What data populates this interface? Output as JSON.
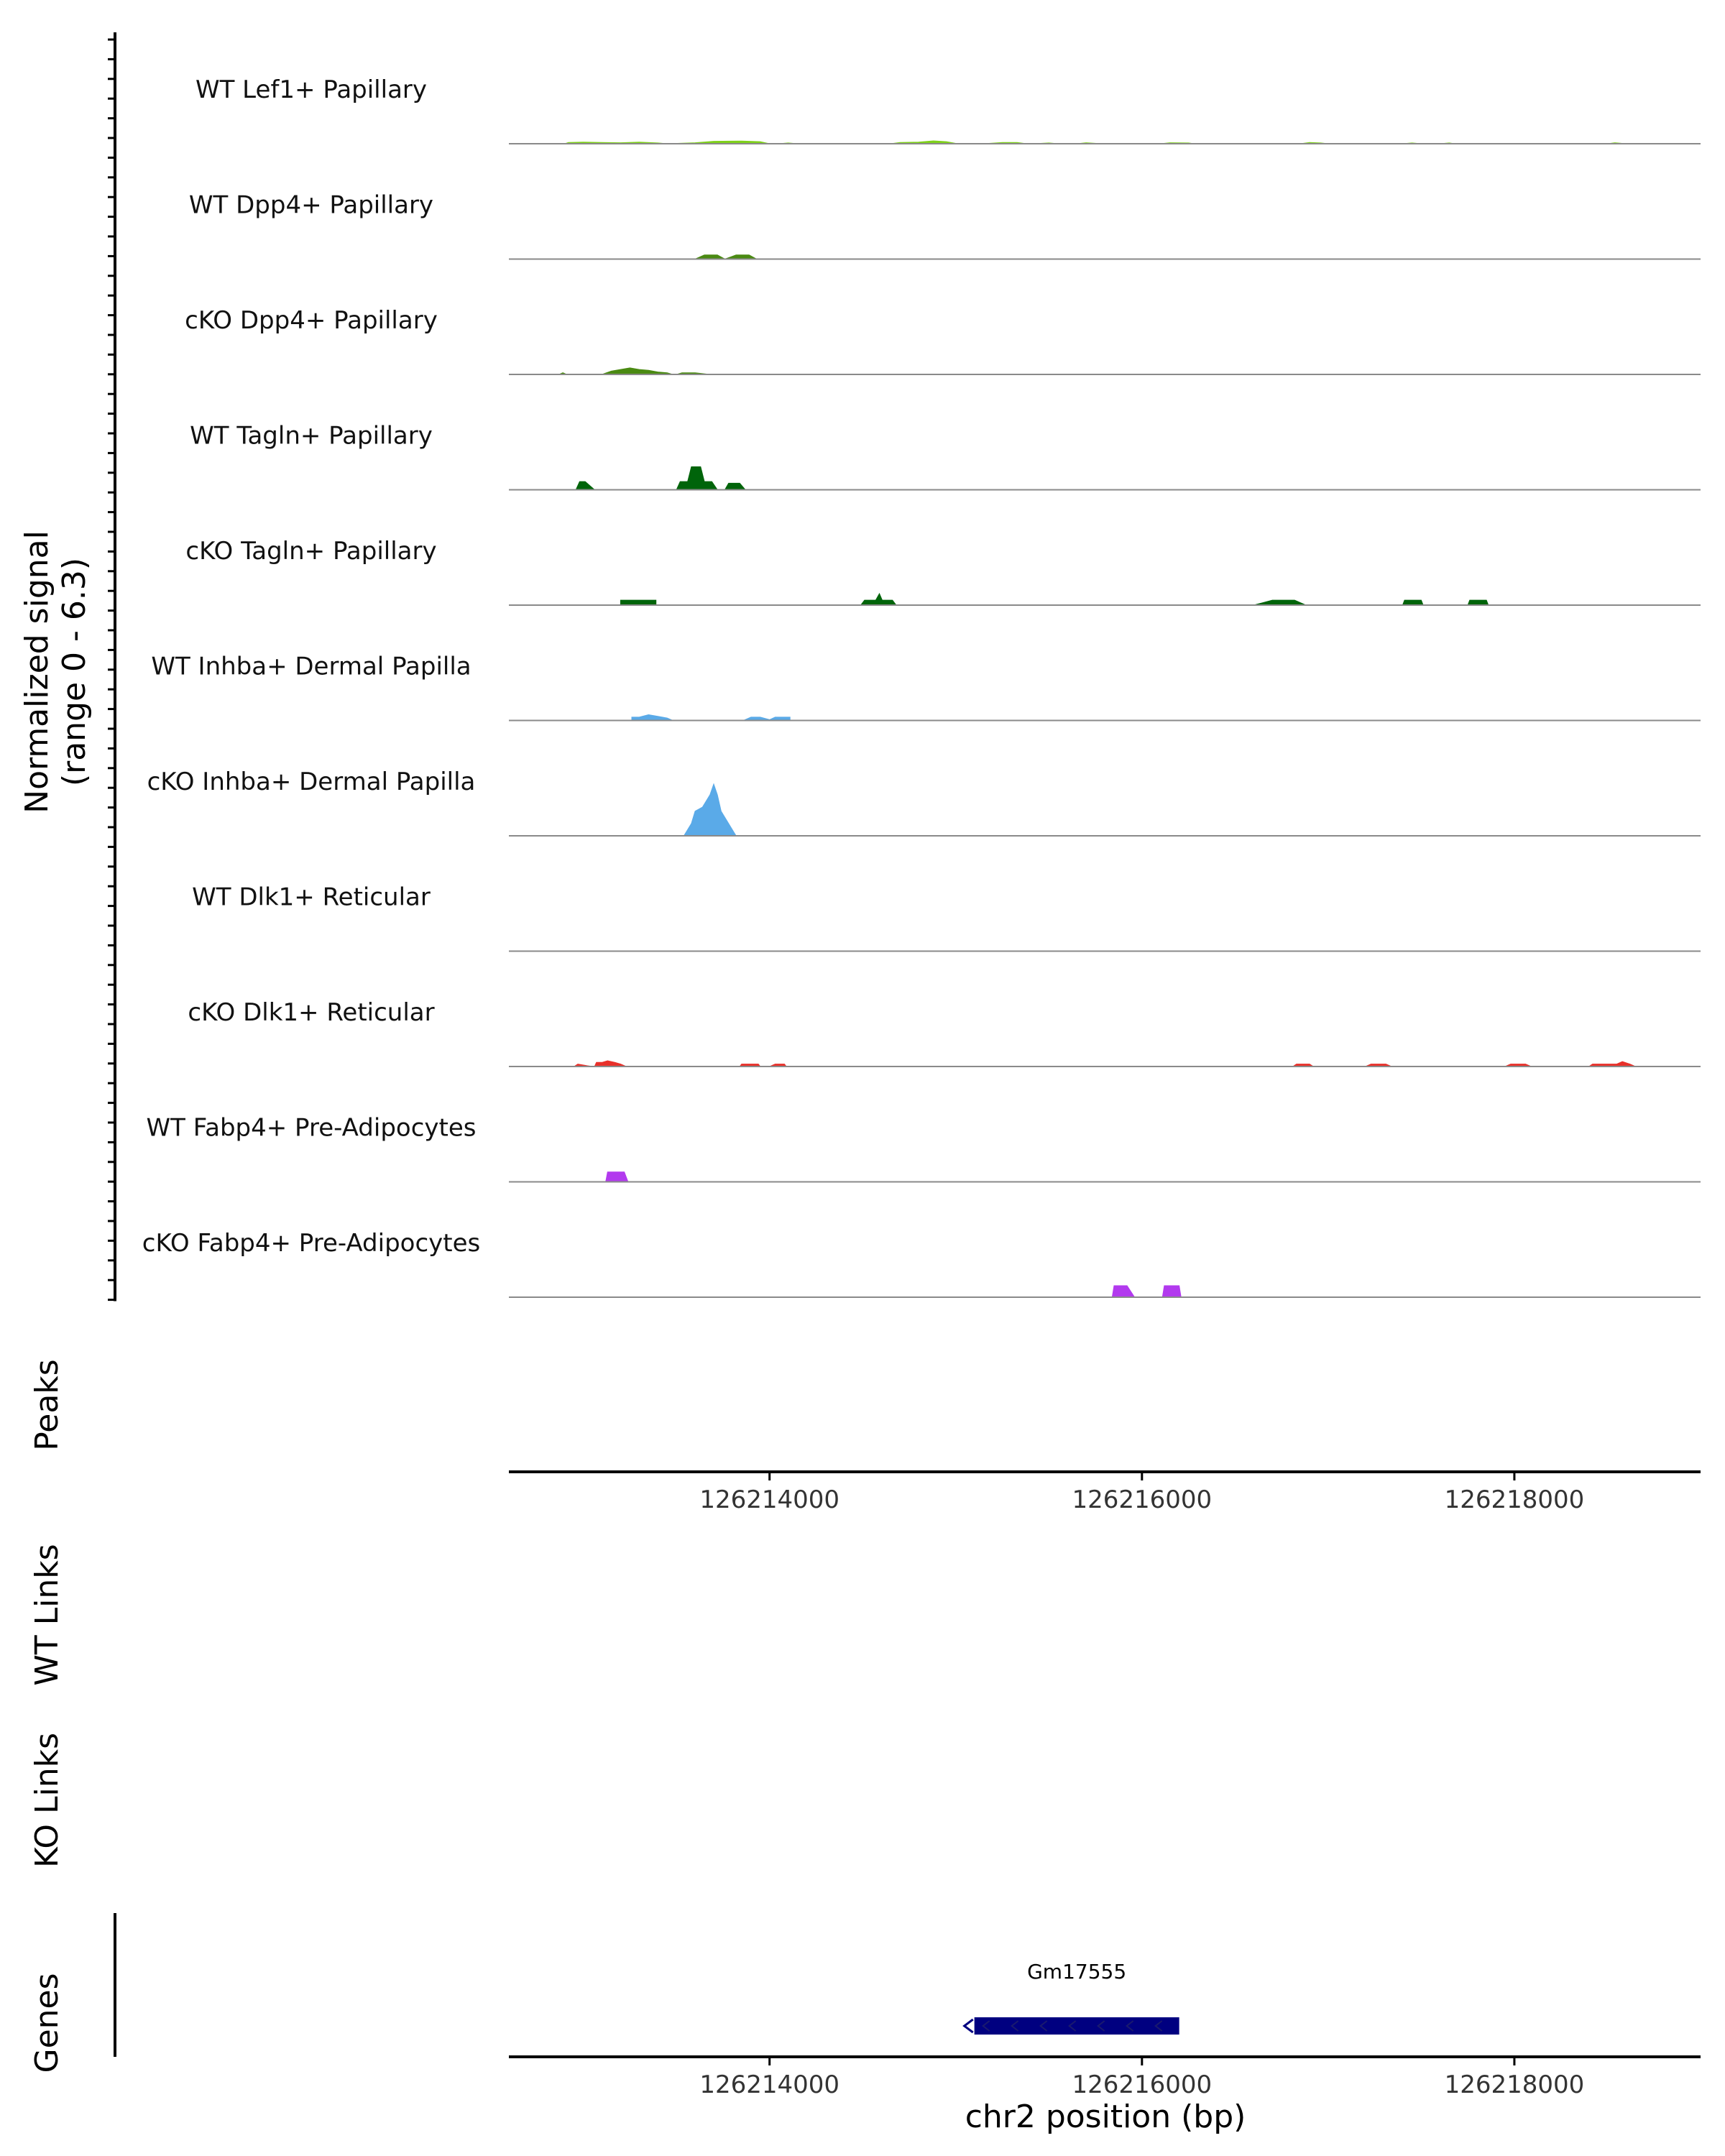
{
  "chart_data": {
    "type": "area",
    "title": "",
    "region": {
      "chromosome": "chr2",
      "start": 126212600,
      "end": 126219000
    },
    "coverage": {
      "ylabel_line1": "Normalized signal",
      "ylabel_line2": "(range 0 - 6.3)",
      "ylim": [
        0,
        6.3
      ],
      "series": [
        {
          "name": "WT Lef1+ Papillary",
          "color": "#7FD11B",
          "segments": [
            [
              [
                126212900,
                0
              ],
              [
                126212920,
                0.15
              ],
              [
                126213000,
                0.2
              ],
              [
                126213100,
                0.15
              ],
              [
                126213200,
                0.12
              ],
              [
                126213300,
                0.2
              ],
              [
                126213400,
                0.1
              ],
              [
                126213450,
                0
              ],
              [
                126213450,
                0
              ],
              [
                126213600,
                0.12
              ],
              [
                126213700,
                0.3
              ],
              [
                126213850,
                0.33
              ],
              [
                126213950,
                0.25
              ],
              [
                126214000,
                0
              ],
              [
                126214050,
                0
              ],
              [
                126214100,
                0.1
              ],
              [
                126214150,
                0
              ]
            ],
            [
              [
                126214650,
                0
              ],
              [
                126214700,
                0.15
              ],
              [
                126214800,
                0.2
              ],
              [
                126214880,
                0.35
              ],
              [
                126214950,
                0.25
              ],
              [
                126215010,
                0
              ]
            ],
            [
              [
                126215150,
                0
              ],
              [
                126215250,
                0.15
              ],
              [
                126215330,
                0.15
              ],
              [
                126215380,
                0
              ]
            ],
            [
              [
                126215420,
                0
              ],
              [
                126215500,
                0.1
              ],
              [
                126215550,
                0
              ]
            ],
            [
              [
                126215650,
                0
              ],
              [
                126215700,
                0.12
              ],
              [
                126215780,
                0
              ]
            ],
            [
              [
                126216100,
                0
              ],
              [
                126216150,
                0.12
              ],
              [
                126216250,
                0.1
              ],
              [
                126216280,
                0
              ]
            ],
            [
              [
                126216850,
                0
              ],
              [
                126216900,
                0.15
              ],
              [
                126216960,
                0.1
              ],
              [
                126217000,
                0
              ]
            ],
            [
              [
                126217400,
                0
              ],
              [
                126217450,
                0.1
              ],
              [
                126217500,
                0
              ]
            ],
            [
              [
                126217600,
                0
              ],
              [
                126217650,
                0.1
              ],
              [
                126217680,
                0
              ]
            ],
            [
              [
                126218500,
                0
              ],
              [
                126218540,
                0.12
              ],
              [
                126218600,
                0
              ]
            ]
          ]
        },
        {
          "name": "WT Dpp4+ Papillary",
          "color": "#4A8A12",
          "segments": [
            [
              [
                126213600,
                0
              ],
              [
                126213650,
                0.5
              ],
              [
                126213720,
                0.5
              ],
              [
                126213760,
                0
              ]
            ],
            [
              [
                126213760,
                0
              ],
              [
                126213820,
                0.5
              ],
              [
                126213890,
                0.5
              ],
              [
                126213930,
                0
              ]
            ]
          ]
        },
        {
          "name": "cKO Dpp4+ Papillary",
          "color": "#4A8A12",
          "segments": [
            [
              [
                126212870,
                0
              ],
              [
                126212890,
                0.2
              ],
              [
                126212910,
                0
              ]
            ],
            [
              [
                126213100,
                0
              ],
              [
                126213150,
                0.4
              ],
              [
                126213200,
                0.6
              ],
              [
                126213250,
                0.8
              ],
              [
                126213300,
                0.6
              ],
              [
                126213350,
                0.5
              ],
              [
                126213400,
                0.3
              ],
              [
                126213450,
                0.2
              ],
              [
                126213480,
                0
              ]
            ],
            [
              [
                126213500,
                0
              ],
              [
                126213530,
                0.2
              ],
              [
                126213600,
                0.2
              ],
              [
                126213680,
                0
              ]
            ]
          ]
        },
        {
          "name": "WT Tagln+ Papillary",
          "color": "#00640A",
          "segments": [
            [
              [
                126212960,
                0
              ],
              [
                126212980,
                1.0
              ],
              [
                126213010,
                1.0
              ],
              [
                126213060,
                0
              ]
            ],
            [
              [
                126213500,
                0
              ],
              [
                126213520,
                1.0
              ],
              [
                126213560,
                1.0
              ],
              [
                126213580,
                2.8
              ],
              [
                126213630,
                2.8
              ],
              [
                126213650,
                1.0
              ],
              [
                126213690,
                1.0
              ],
              [
                126213720,
                0
              ]
            ],
            [
              [
                126213760,
                0
              ],
              [
                126213780,
                0.8
              ],
              [
                126213840,
                0.8
              ],
              [
                126213870,
                0
              ]
            ]
          ]
        },
        {
          "name": "cKO Tagln+ Papillary",
          "color": "#00640A",
          "segments": [
            [
              [
                126213200,
                0
              ],
              [
                126213200,
                0.6
              ],
              [
                126213390,
                0.6
              ],
              [
                126213390,
                0
              ]
            ],
            [
              [
                126214490,
                0
              ],
              [
                126214510,
                0.6
              ],
              [
                126214570,
                0.6
              ],
              [
                126214590,
                1.4
              ],
              [
                126214605,
                0.6
              ],
              [
                126214660,
                0.6
              ],
              [
                126214680,
                0
              ]
            ],
            [
              [
                126216600,
                0
              ],
              [
                126216650,
                0.3
              ],
              [
                126216700,
                0.6
              ],
              [
                126216820,
                0.6
              ],
              [
                126216880,
                0
              ]
            ],
            [
              [
                126217400,
                0
              ],
              [
                126217410,
                0.6
              ],
              [
                126217500,
                0.6
              ],
              [
                126217510,
                0
              ]
            ],
            [
              [
                126217750,
                0
              ],
              [
                126217760,
                0.6
              ],
              [
                126217850,
                0.6
              ],
              [
                126217860,
                0
              ]
            ]
          ]
        },
        {
          "name": "WT Inhba+ Dermal Papilla",
          "color": "#5AAAE8",
          "segments": [
            [
              [
                126213260,
                0
              ],
              [
                126213260,
                0.4
              ],
              [
                126213300,
                0.4
              ],
              [
                126213350,
                0.7
              ],
              [
                126213400,
                0.5
              ],
              [
                126213450,
                0.3
              ],
              [
                126213480,
                0
              ]
            ],
            [
              [
                126213860,
                0
              ],
              [
                126213900,
                0.4
              ],
              [
                126213950,
                0.4
              ],
              [
                126214000,
                0.1
              ],
              [
                126214030,
                0.4
              ],
              [
                126214110,
                0.4
              ],
              [
                126214110,
                0
              ]
            ]
          ]
        },
        {
          "name": "cKO Inhba+ Dermal Papilla",
          "color": "#5AAAE8",
          "segments": [
            [
              [
                126213540,
                0
              ],
              [
                126213580,
                1.5
              ],
              [
                126213600,
                3.0
              ],
              [
                126213640,
                3.5
              ],
              [
                126213680,
                5.0
              ],
              [
                126213700,
                6.3
              ],
              [
                126213720,
                5.0
              ],
              [
                126213740,
                3.0
              ],
              [
                126213780,
                1.5
              ],
              [
                126213820,
                0
              ]
            ]
          ]
        },
        {
          "name": "WT Dlk1+ Reticular",
          "color": "#E8302A",
          "segments": []
        },
        {
          "name": "cKO Dlk1+ Reticular",
          "color": "#E8302A",
          "segments": [
            [
              [
                126212950,
                0
              ],
              [
                126212970,
                0.3
              ],
              [
                126213020,
                0.1
              ],
              [
                126213050,
                0
              ]
            ],
            [
              [
                126213060,
                0
              ],
              [
                126213070,
                0.5
              ],
              [
                126213100,
                0.5
              ],
              [
                126213130,
                0.7
              ],
              [
                126213170,
                0.5
              ],
              [
                126213200,
                0.3
              ],
              [
                126213230,
                0
              ]
            ],
            [
              [
                126213840,
                0
              ],
              [
                126213850,
                0.3
              ],
              [
                126213940,
                0.3
              ],
              [
                126213950,
                0
              ]
            ],
            [
              [
                126214000,
                0
              ],
              [
                126214030,
                0.3
              ],
              [
                126214080,
                0.3
              ],
              [
                126214090,
                0
              ]
            ],
            [
              [
                126216810,
                0
              ],
              [
                126216830,
                0.3
              ],
              [
                126216900,
                0.3
              ],
              [
                126216920,
                0
              ]
            ],
            [
              [
                126217200,
                0
              ],
              [
                126217230,
                0.3
              ],
              [
                126217310,
                0.3
              ],
              [
                126217340,
                0
              ]
            ],
            [
              [
                126217950,
                0
              ],
              [
                126217980,
                0.3
              ],
              [
                126218060,
                0.3
              ],
              [
                126218090,
                0
              ]
            ],
            [
              [
                126218400,
                0
              ],
              [
                126218420,
                0.3
              ],
              [
                126218550,
                0.3
              ],
              [
                126218580,
                0.6
              ],
              [
                126218620,
                0.3
              ],
              [
                126218650,
                0
              ]
            ]
          ]
        },
        {
          "name": "WT Fabp4+ Pre-Adipocytes",
          "color": "#B23AEE",
          "segments": [
            [
              [
                126213120,
                0
              ],
              [
                126213130,
                1.2
              ],
              [
                126213220,
                1.2
              ],
              [
                126213240,
                0
              ]
            ]
          ]
        },
        {
          "name": "cKO Fabp4+ Pre-Adipocytes",
          "color": "#B23AEE",
          "segments": [
            [
              [
                126215840,
                0
              ],
              [
                126215850,
                1.4
              ],
              [
                126215920,
                1.4
              ],
              [
                126215960,
                0
              ]
            ],
            [
              [
                126216110,
                0
              ],
              [
                126216120,
                1.4
              ],
              [
                126216200,
                1.4
              ],
              [
                126216210,
                0
              ]
            ]
          ]
        }
      ]
    },
    "side_labels": {
      "peaks": "Peaks",
      "wt_links": "WT Links",
      "ko_links": "KO Links",
      "genes": "Genes"
    },
    "x_ticks": [
      126214000,
      126216000,
      126218000
    ],
    "x_tick_labels": [
      "126214000",
      "126216000",
      "126218000"
    ],
    "xlabel": "chr2 position (bp)",
    "genes": [
      {
        "name": "Gm17555",
        "start": 126215100,
        "end": 126216200,
        "strand": "-",
        "color": "#000080"
      }
    ]
  }
}
